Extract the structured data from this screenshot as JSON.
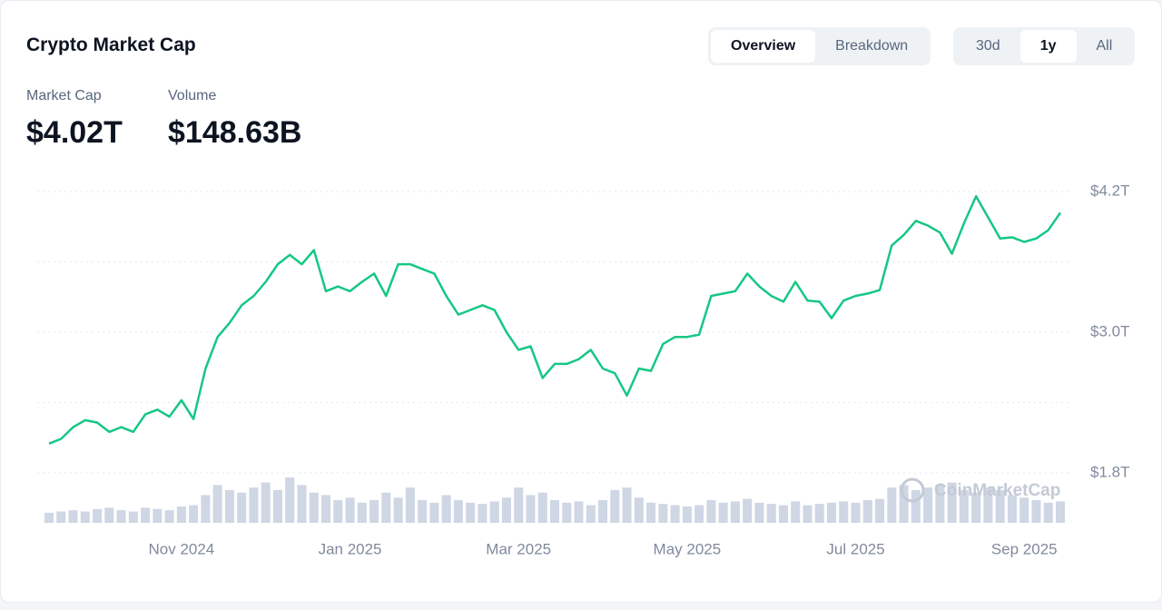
{
  "header": {
    "title": "Crypto Market Cap",
    "view_tabs": [
      "Overview",
      "Breakdown"
    ],
    "range_tabs": [
      "30d",
      "1y",
      "All"
    ]
  },
  "stats": [
    {
      "label": "Market Cap",
      "value": "$4.02T"
    },
    {
      "label": "Volume",
      "value": "$148.63B"
    }
  ],
  "watermark": "CoinMarketCap",
  "chart_data": {
    "type": "line",
    "categories": [
      null,
      null,
      null,
      null,
      null,
      null,
      null,
      null,
      null,
      null,
      null,
      "Nov 2024",
      null,
      null,
      null,
      null,
      null,
      null,
      null,
      null,
      null,
      null,
      null,
      null,
      null,
      "Jan 2025",
      null,
      null,
      null,
      null,
      null,
      null,
      null,
      null,
      null,
      null,
      null,
      null,
      null,
      "Mar 2025",
      null,
      null,
      null,
      null,
      null,
      null,
      null,
      null,
      null,
      null,
      null,
      null,
      null,
      "May 2025",
      null,
      null,
      null,
      null,
      null,
      null,
      null,
      null,
      null,
      null,
      null,
      null,
      null,
      "Jul 2025",
      null,
      null,
      null,
      null,
      null,
      null,
      null,
      null,
      null,
      null,
      null,
      null,
      null,
      "Sep 2025",
      null,
      null,
      null
    ],
    "values": [
      2.05,
      2.09,
      2.19,
      2.25,
      2.23,
      2.15,
      2.19,
      2.15,
      2.3,
      2.34,
      2.28,
      2.42,
      2.26,
      2.69,
      2.96,
      3.08,
      3.23,
      3.31,
      3.43,
      3.58,
      3.66,
      3.58,
      3.7,
      3.35,
      3.39,
      3.35,
      3.43,
      3.5,
      3.31,
      3.58,
      3.58,
      3.54,
      3.5,
      3.31,
      3.15,
      3.19,
      3.23,
      3.19,
      3.0,
      2.85,
      2.88,
      2.61,
      2.73,
      2.73,
      2.77,
      2.85,
      2.69,
      2.65,
      2.46,
      2.69,
      2.67,
      2.9,
      2.96,
      2.96,
      2.98,
      3.31,
      3.33,
      3.35,
      3.5,
      3.39,
      3.31,
      3.26,
      3.43,
      3.27,
      3.26,
      3.12,
      3.27,
      3.31,
      3.33,
      3.36,
      3.74,
      3.83,
      3.95,
      3.91,
      3.85,
      3.67,
      3.93,
      4.16,
      3.98,
      3.8,
      3.81,
      3.77,
      3.8,
      3.87,
      4.02
    ],
    "color": "#16c784",
    "volume": [
      40,
      45,
      50,
      45,
      55,
      60,
      50,
      45,
      60,
      55,
      50,
      65,
      70,
      110,
      150,
      130,
      120,
      140,
      160,
      130,
      180,
      150,
      120,
      110,
      90,
      100,
      80,
      90,
      120,
      100,
      140,
      90,
      80,
      110,
      90,
      80,
      75,
      85,
      100,
      140,
      110,
      120,
      90,
      80,
      85,
      70,
      90,
      130,
      140,
      100,
      80,
      75,
      70,
      65,
      70,
      90,
      80,
      85,
      95,
      80,
      75,
      70,
      85,
      70,
      75,
      80,
      85,
      80,
      90,
      95,
      140,
      150,
      130,
      140,
      150,
      160,
      130,
      120,
      140,
      130,
      110,
      100,
      90,
      80,
      85
    ],
    "volume_color": "#cfd6e4",
    "ylim": [
      1.8,
      4.2
    ],
    "yticks": [
      {
        "value": 4.2,
        "label": "$4.2T"
      },
      {
        "value": 3,
        "label": "$3.0T"
      },
      {
        "value": 1.8,
        "label": "$1.8T"
      }
    ],
    "ygrid": [
      4.2,
      3.6,
      3,
      2.4,
      1.8
    ],
    "grid": true
  }
}
